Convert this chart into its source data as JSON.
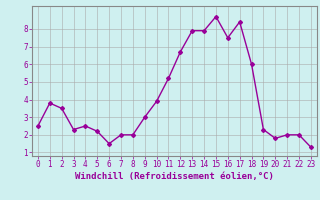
{
  "x": [
    0,
    1,
    2,
    3,
    4,
    5,
    6,
    7,
    8,
    9,
    10,
    11,
    12,
    13,
    14,
    15,
    16,
    17,
    18,
    19,
    20,
    21,
    22,
    23
  ],
  "y": [
    2.5,
    3.8,
    3.5,
    2.3,
    2.5,
    2.2,
    1.5,
    2.0,
    2.0,
    3.0,
    3.9,
    5.2,
    6.7,
    7.9,
    7.9,
    8.7,
    7.5,
    8.4,
    6.0,
    2.3,
    1.8,
    2.0,
    2.0,
    1.3
  ],
  "line_color": "#990099",
  "marker": "D",
  "marker_size": 2,
  "background_color": "#cff0f0",
  "grid_color": "#aaaaaa",
  "xlabel": "Windchill (Refroidissement éolien,°C)",
  "xlabel_color": "#990099",
  "xlim": [
    -0.5,
    23.5
  ],
  "ylim": [
    0.8,
    9.3
  ],
  "yticks": [
    1,
    2,
    3,
    4,
    5,
    6,
    7,
    8
  ],
  "xticks": [
    0,
    1,
    2,
    3,
    4,
    5,
    6,
    7,
    8,
    9,
    10,
    11,
    12,
    13,
    14,
    15,
    16,
    17,
    18,
    19,
    20,
    21,
    22,
    23
  ],
  "tick_color": "#990099",
  "tick_labelsize": 5.5,
  "xlabel_fontsize": 6.5,
  "linewidth": 1.0
}
